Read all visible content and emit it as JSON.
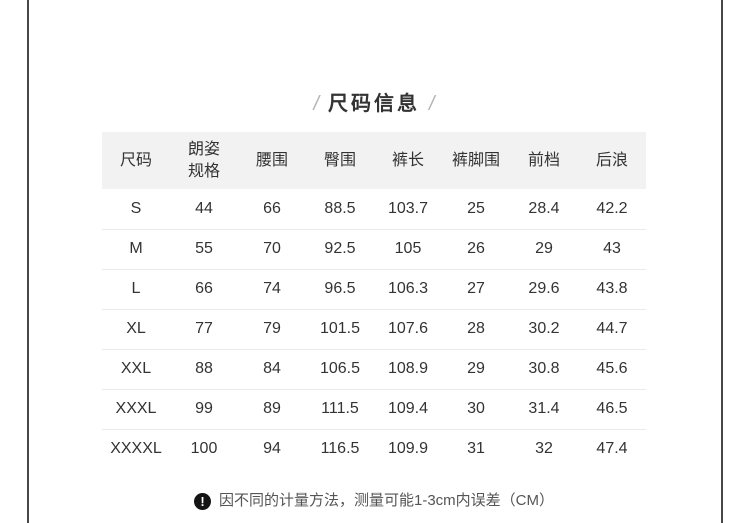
{
  "section": {
    "title": "尺码信息",
    "title_decor_left": "/",
    "title_decor_right": "/"
  },
  "colors": {
    "header_bg": "#f2f2f2",
    "row_divider": "#ebebeb",
    "text": "#333333",
    "title_slash": "#b3b3b3",
    "edge_line": "#474747",
    "note_text": "#555555",
    "note_icon_bg": "#141414"
  },
  "table": {
    "headers": [
      "尺码",
      "朗姿\n规格",
      "腰围",
      "臀围",
      "裤长",
      "裤脚围",
      "前档",
      "后浪"
    ],
    "rows": [
      [
        "S",
        "44",
        "66",
        "88.5",
        "103.7",
        "25",
        "28.4",
        "42.2"
      ],
      [
        "M",
        "55",
        "70",
        "92.5",
        "105",
        "26",
        "29",
        "43"
      ],
      [
        "L",
        "66",
        "74",
        "96.5",
        "106.3",
        "27",
        "29.6",
        "43.8"
      ],
      [
        "XL",
        "77",
        "79",
        "101.5",
        "107.6",
        "28",
        "30.2",
        "44.7"
      ],
      [
        "XXL",
        "88",
        "84",
        "106.5",
        "108.9",
        "29",
        "30.8",
        "45.6"
      ],
      [
        "XXXL",
        "99",
        "89",
        "111.5",
        "109.4",
        "30",
        "31.4",
        "46.5"
      ],
      [
        "XXXXL",
        "100",
        "94",
        "116.5",
        "109.9",
        "31",
        "32",
        "47.4"
      ]
    ]
  },
  "footnote": {
    "icon": "!",
    "text": "因不同的计量方法，测量可能1-3cm内误差（CM）"
  }
}
